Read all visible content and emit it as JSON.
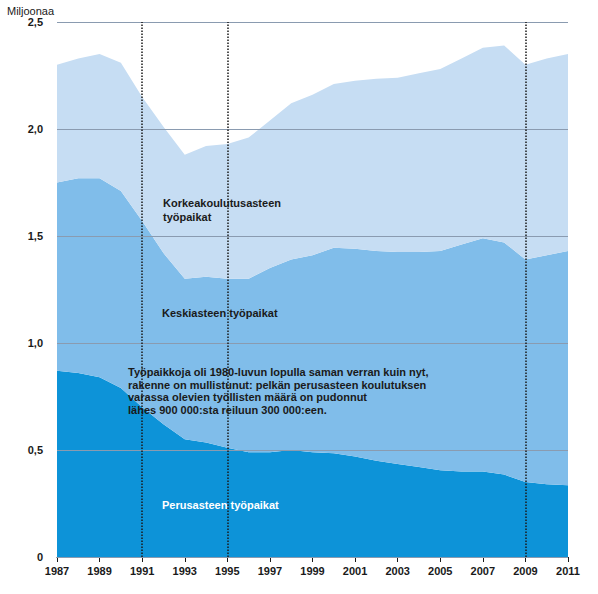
{
  "chart_data": {
    "type": "area",
    "stacked": true,
    "grid": true,
    "ylabel": "Miljoonaa",
    "categories": [
      "1987",
      null,
      "1989",
      null,
      "1991",
      null,
      "1993",
      null,
      "1995",
      null,
      "1997",
      null,
      "1999",
      null,
      "2001",
      null,
      "2003",
      null,
      "2005",
      null,
      "2007",
      null,
      "2009",
      null,
      "2011"
    ],
    "series": [
      {
        "name": "Perusasteen työpaikat",
        "color": "#0d93d8",
        "values": [
          0.87,
          0.86,
          0.84,
          0.79,
          0.7,
          0.62,
          0.55,
          0.535,
          0.51,
          0.49,
          0.49,
          0.5,
          0.49,
          0.485,
          0.47,
          0.45,
          0.435,
          0.42,
          0.405,
          0.4,
          0.4,
          0.385,
          0.35,
          0.34,
          0.335
        ]
      },
      {
        "name": "Keskiasteen työpaikat",
        "color": "#80bdea",
        "values": [
          0.88,
          0.91,
          0.93,
          0.92,
          0.87,
          0.8,
          0.75,
          0.775,
          0.79,
          0.81,
          0.86,
          0.89,
          0.92,
          0.96,
          0.97,
          0.98,
          0.99,
          1.005,
          1.025,
          1.06,
          1.09,
          1.085,
          1.04,
          1.07,
          1.095
        ]
      },
      {
        "name": "Korkeakoulutusasteen\ntyöpaikat",
        "color": "#c6ddf3",
        "values": [
          0.55,
          0.56,
          0.58,
          0.6,
          0.58,
          0.59,
          0.58,
          0.61,
          0.63,
          0.66,
          0.69,
          0.73,
          0.75,
          0.765,
          0.785,
          0.805,
          0.815,
          0.835,
          0.85,
          0.87,
          0.89,
          0.92,
          0.91,
          0.92,
          0.92
        ]
      }
    ],
    "ylim": [
      0,
      2.5
    ],
    "yticks": [
      0,
      {
        "value": 0.5,
        "label": "0,5"
      },
      {
        "value": 1.0,
        "label": "1,0"
      },
      {
        "value": 1.5,
        "label": "1,5"
      },
      {
        "value": 2.0,
        "label": "2,0"
      },
      {
        "value": 2.5,
        "label": "2,5"
      }
    ],
    "vlines": [
      "1991",
      "1995",
      "2009"
    ],
    "annotations": [
      {
        "text": "Työpaikkoja oli 1980-luvun lopulla saman verran kuin nyt,\nrakenne on mullistunut: pelkän perusasteen koulutuksen\nvarassa olevien työllisten määrä on pudonnut\nlähes 900 000:sta reiluun 300 000:een."
      }
    ]
  }
}
